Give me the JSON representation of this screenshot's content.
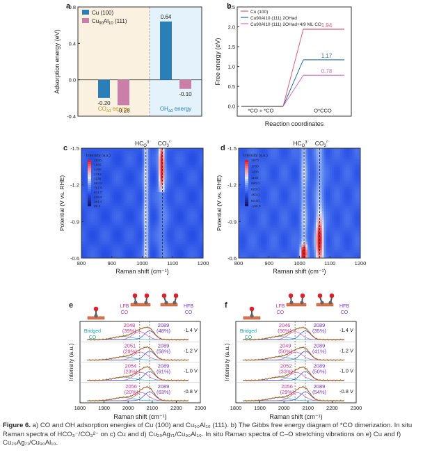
{
  "panel_labels": {
    "a": "a",
    "b": "b",
    "c": "c",
    "d": "d",
    "e": "e",
    "f": "f"
  },
  "caption": {
    "label": "Figure 6.",
    "text": "a) CO and OH adsorption energies of Cu (100) and Cu₉₀Al₁₀ (111). b) The Gibbs free energy diagram of *CO dimerization. In situ Raman spectra of HCO₃⁻/CO₃²⁻ on c) Cu and d) Cu₂₉Ag₇₁/Cu₉₀Al₁₀. In situ Raman spectra of C–O stretching vibrations on e) Cu and f) Cu₂₉Ag₇₁/Cu₉₀Al₁₀."
  },
  "colors": {
    "cu": "#2a7fb8",
    "cual": "#c97fa8",
    "line_cu": "#e05a7a",
    "line_oh": "#1f6fa0",
    "line_co": "#d670c8",
    "bg_co": "#fbf1e0",
    "bg_oh": "#e3f2fb",
    "fit_green": "#8fbf3a",
    "fit_red": "#d23b3b",
    "fit_blue": "#3b56c8",
    "fit_pink": "#e05fbf",
    "fit_cyan": "#30b8c8"
  },
  "chart_data": [
    {
      "panel": "a",
      "type": "bar",
      "ylabel": "Adsorption energy (eV)",
      "ylim": [
        -0.4,
        0.8
      ],
      "yticks": [
        "-0.4",
        "0.0",
        "0.4",
        "0.8"
      ],
      "groups": [
        "CO_ad energy",
        "OH_ad energy"
      ],
      "group_labels": [
        {
          "main": "CO",
          "sub": "ad",
          "tail": " energy"
        },
        {
          "main": "OH",
          "sub": "ad",
          "tail": " energy"
        }
      ],
      "series": [
        {
          "name": "Cu (100)",
          "values": [
            -0.2,
            0.64
          ]
        },
        {
          "name": "Cu90Al10 (111)",
          "values": [
            -0.28,
            -0.1
          ]
        }
      ],
      "value_labels": [
        [
          "-0.20",
          "0.64"
        ],
        [
          "-0.28",
          "-0.10"
        ]
      ],
      "legend": [
        {
          "main": "Cu (100)",
          "sub": ""
        },
        {
          "main": "Cu",
          "sub": "90",
          "main2": "Al",
          "sub2": "10",
          "tail": " (111)"
        }
      ]
    },
    {
      "panel": "b",
      "type": "line",
      "xlabel": "Reaction coordinates",
      "ylabel": "Free energy (eV)",
      "ylim": [
        -0.25,
        2.5
      ],
      "yticks": [
        "0.0",
        "0.5",
        "1.0",
        "1.5",
        "2.0",
        "2.5"
      ],
      "x_states": [
        "*CO + *CO",
        "O*CCO"
      ],
      "series": [
        {
          "name": "Cu (100)",
          "values": [
            0,
            1.94
          ]
        },
        {
          "name": "Cu90Al10 (111) 2OHad",
          "values": [
            0,
            1.17
          ]
        },
        {
          "name": "Cu90Al10 (111) 2OHad+4/9 ML CO",
          "values": [
            0,
            0.78
          ]
        }
      ],
      "value_labels": [
        "1.94",
        "1.17",
        "0.78"
      ],
      "legend": [
        "Cu (100)",
        "Cu90Al10 (111) 2OHad",
        "Cu90Al10 (111) 2OHad+4/9 ML CO"
      ]
    },
    {
      "panel": "c",
      "type": "heatmap",
      "xlabel": "Raman shift (cm⁻¹)",
      "ylabel": "Potential (V vs. RHE)",
      "xlim": [
        800,
        1200
      ],
      "xticks": [
        "800",
        "900",
        "1000",
        "1100",
        "1200"
      ],
      "yticks": [
        "-1.5",
        "-1.2",
        "-0.9",
        "-0.6"
      ],
      "peak_labels": [
        "HCO3⁻",
        "CO3²⁻"
      ],
      "peak_positions": [
        1012,
        1066
      ],
      "colorbar_title": "Intensity (a.u.)",
      "colorbar_ticks": [
        "1840",
        "1665",
        "1490",
        "1313",
        "1138",
        "963.0",
        "787.0",
        "611.0",
        "436.0",
        "261.0",
        "85.0"
      ]
    },
    {
      "panel": "d",
      "type": "heatmap",
      "xlabel": "Raman shift (cm⁻¹)",
      "ylabel": "Potential (V vs. RHE)",
      "xlim": [
        800,
        1200
      ],
      "xticks": [
        "800",
        "900",
        "1000",
        "1100",
        "1200"
      ],
      "yticks": [
        "-1.5",
        "-1.2",
        "-0.9",
        "-0.6"
      ],
      "peak_labels": [
        "HCO3⁻",
        "CO3²⁻"
      ],
      "peak_positions": [
        1015,
        1066
      ],
      "colorbar_title": "Intensity (a.u.)",
      "colorbar_ticks": [
        "1970",
        "1700",
        "1430",
        "1160",
        "890.0",
        "620.0",
        "350.0",
        "80.00",
        "-190.0"
      ]
    },
    {
      "panel": "e",
      "type": "line",
      "xlabel": "Raman shift (cm⁻¹)",
      "ylabel": "Intensity (a.u.)",
      "xlim": [
        1800,
        2300
      ],
      "xticks": [
        "1800",
        "1900",
        "2000",
        "2100",
        "2200",
        "2300"
      ],
      "potentials": [
        "-1.4 V",
        "-1.2 V",
        "-1.0 V",
        "-0.8 V"
      ],
      "lfb_peaks": [
        "2048",
        "2051",
        "2054",
        "2056"
      ],
      "lfb_percent": [
        "(39%)",
        "(29%)",
        "(23%)",
        "(20%)"
      ],
      "hfb_peaks": [
        "2089",
        "2089",
        "2089",
        "2089"
      ],
      "hfb_percent": [
        "(48%)",
        "(58%)",
        "(61%)",
        "(63%)"
      ],
      "annotations": {
        "lfb": "LFB",
        "hfb": "HFB",
        "co": "CO",
        "bridged": "Bridged"
      }
    },
    {
      "panel": "f",
      "type": "line",
      "xlabel": "Raman shift (cm⁻¹)",
      "ylabel": "Intensity (a.u.)",
      "xlim": [
        1800,
        2300
      ],
      "xticks": [
        "1800",
        "1900",
        "2000",
        "2100",
        "2200",
        "2300"
      ],
      "potentials": [
        "-1.4 V",
        "-1.2 V",
        "-1.0 V",
        "-0.8 V"
      ],
      "lfb_peaks": [
        "2046",
        "2049",
        "2052",
        "2056"
      ],
      "lfb_percent": [
        "(56%)",
        "(50%)",
        "(33%)",
        "(29%)"
      ],
      "hfb_peaks": [
        "2089",
        "2089",
        "2089",
        "2089"
      ],
      "hfb_percent": [
        "(35%)",
        "(41%)",
        "(50%)",
        "(54%)"
      ],
      "annotations": {
        "lfb": "LFB",
        "hfb": "HFB",
        "co": "CO",
        "bridged": "Bridged"
      }
    }
  ]
}
